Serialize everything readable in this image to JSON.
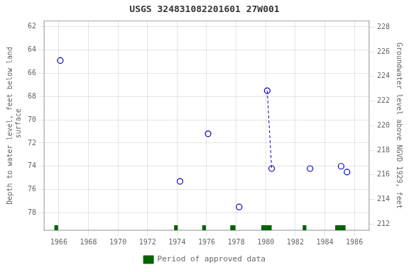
{
  "chart_data": {
    "type": "scatter",
    "title": "USGS 324831082201601 27W001",
    "ylabel": "Depth to water level, feet below land\n surface",
    "y2label": "Groundwater level above NGVD 1929, feet",
    "xlim": [
      1965.0,
      1987.0
    ],
    "xticks": [
      1966,
      1968,
      1970,
      1972,
      1974,
      1976,
      1978,
      1980,
      1982,
      1984,
      1986
    ],
    "ylim": [
      79.5,
      61.5
    ],
    "yticks": [
      62,
      64,
      66,
      68,
      70,
      72,
      74,
      76,
      78
    ],
    "y2lim": [
      211.5,
      228.5
    ],
    "y2ticks": [
      228,
      226,
      224,
      222,
      220,
      218,
      216,
      214,
      212
    ],
    "grid": true,
    "legend": "bottom",
    "series": [
      {
        "type": "scatter",
        "marker": "open_circle",
        "color": "#0000bb",
        "x": [
          1966.1,
          1974.2,
          1976.1,
          1978.2,
          1980.1,
          1980.4,
          1983.0,
          1985.1,
          1985.5
        ],
        "values": [
          64.9,
          75.3,
          71.2,
          77.5,
          67.5,
          74.2,
          74.2,
          74.0,
          74.5
        ]
      },
      {
        "type": "line",
        "line_style": "dashed",
        "color": "#0000bb",
        "x": [
          1980.1,
          1980.4
        ],
        "values": [
          67.5,
          74.2
        ]
      },
      {
        "type": "bar",
        "name": "Period of approved data",
        "color": "#006400",
        "x": [
          1965.7,
          1973.8,
          1975.7,
          1977.6,
          1979.7,
          1982.5,
          1984.7
        ],
        "widths": [
          0.25,
          0.25,
          0.25,
          0.35,
          0.7,
          0.25,
          0.7
        ]
      }
    ]
  }
}
